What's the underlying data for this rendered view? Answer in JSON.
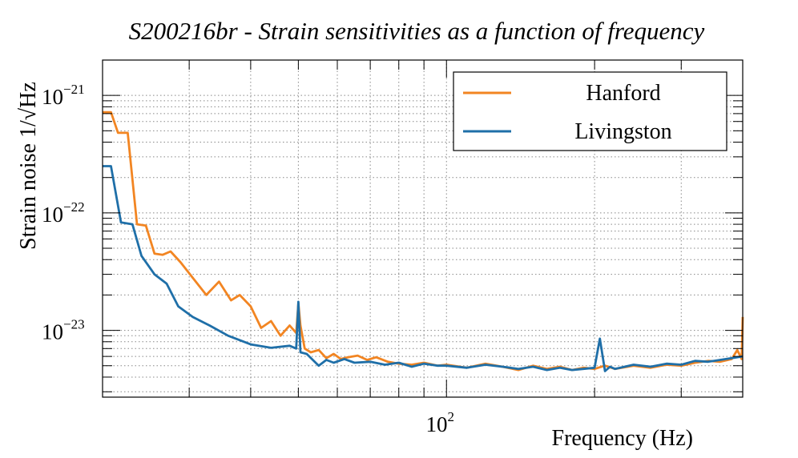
{
  "chart_data": {
    "type": "line",
    "title": "S200216br - Strain sensitivities as a function of frequency",
    "xlabel": "Frequency (Hz)",
    "ylabel": "Strain noise 1/√Hz",
    "x_scale": "log",
    "y_scale": "log",
    "xlim": [
      20,
      400
    ],
    "ylim": [
      2.7e-24,
      2e-21
    ],
    "x_tick_labels": [
      {
        "value": 100,
        "base": "10",
        "exponent": "2"
      }
    ],
    "y_tick_labels": [
      {
        "value": 1e-21,
        "base": "10",
        "exponent": "−21"
      },
      {
        "value": 1e-22,
        "base": "10",
        "exponent": "−22"
      },
      {
        "value": 1e-23,
        "base": "10",
        "exponent": "−23"
      }
    ],
    "grid": true,
    "legend_position": "top-right",
    "series": [
      {
        "name": "Hanford",
        "color": "#f28522",
        "x": [
          20,
          20.8,
          21.5,
          22.5,
          23.5,
          24.5,
          25.5,
          26.5,
          27.5,
          28.8,
          30.5,
          32.5,
          34.5,
          36.5,
          38,
          40,
          42,
          44,
          46,
          48,
          49.5,
          50,
          50.5,
          51.5,
          53,
          55,
          57,
          59,
          61,
          63,
          66,
          69,
          72,
          76,
          80,
          85,
          90,
          96,
          100,
          110,
          120,
          130,
          140,
          150,
          160,
          170,
          180,
          190,
          200,
          210,
          220,
          240,
          260,
          280,
          300,
          320,
          340,
          360,
          380,
          390,
          398,
          400
        ],
        "y": [
          7.2e-22,
          7.2e-22,
          4.8e-22,
          4.8e-22,
          8e-23,
          7.8e-23,
          4.5e-23,
          4.4e-23,
          4.7e-23,
          3.8e-23,
          2.8e-23,
          2e-23,
          2.6e-23,
          1.8e-23,
          2e-23,
          1.6e-23,
          1.05e-23,
          1.2e-23,
          9e-24,
          1.1e-23,
          9.5e-24,
          1.7e-23,
          1.1e-23,
          7e-24,
          6.5e-24,
          6.8e-24,
          5.8e-24,
          6.3e-24,
          5.7e-24,
          5.9e-24,
          6.1e-24,
          5.6e-24,
          5.9e-24,
          5.4e-24,
          5.2e-24,
          5.1e-24,
          5.3e-24,
          5e-24,
          5.1e-24,
          4.8e-24,
          5.2e-24,
          4.9e-24,
          4.6e-24,
          5e-24,
          4.7e-24,
          4.9e-24,
          4.6e-24,
          4.8e-24,
          4.7e-24,
          5e-24,
          4.7e-24,
          5e-24,
          4.8e-24,
          5.1e-24,
          5e-24,
          5.3e-24,
          5.5e-24,
          5.4e-24,
          5.7e-24,
          6.8e-24,
          5.7e-24,
          1.3e-23
        ]
      },
      {
        "name": "Livingston",
        "color": "#1f6fa8",
        "x": [
          20,
          20.8,
          21.8,
          23,
          24,
          25.5,
          27,
          28.5,
          30.5,
          33,
          36,
          40,
          44,
          48,
          49.5,
          50,
          50.5,
          52,
          55,
          57,
          59,
          62,
          65,
          70,
          75,
          80,
          85,
          90,
          96,
          100,
          110,
          120,
          130,
          140,
          150,
          160,
          170,
          180,
          190,
          200,
          205,
          210,
          215,
          220,
          240,
          260,
          280,
          300,
          320,
          340,
          360,
          380,
          400
        ],
        "y": [
          2.5e-22,
          2.5e-22,
          8.3e-23,
          8e-23,
          4.3e-23,
          3e-23,
          2.5e-23,
          1.6e-23,
          1.3e-23,
          1.1e-23,
          9e-24,
          7.6e-24,
          7.1e-24,
          7.4e-24,
          7e-24,
          1.75e-23,
          6.5e-24,
          6.3e-24,
          5e-24,
          5.6e-24,
          5.3e-24,
          5.7e-24,
          5.3e-24,
          5.4e-24,
          5.1e-24,
          5.3e-24,
          4.9e-24,
          5.2e-24,
          5e-24,
          5e-24,
          4.8e-24,
          5.1e-24,
          4.9e-24,
          4.7e-24,
          4.9e-24,
          4.6e-24,
          4.8e-24,
          4.6e-24,
          4.7e-24,
          4.8e-24,
          8.5e-24,
          4.5e-24,
          4.9e-24,
          4.7e-24,
          5.1e-24,
          4.9e-24,
          5.2e-24,
          5.1e-24,
          5.5e-24,
          5.4e-24,
          5.6e-24,
          5.8e-24,
          6e-24
        ]
      }
    ]
  }
}
